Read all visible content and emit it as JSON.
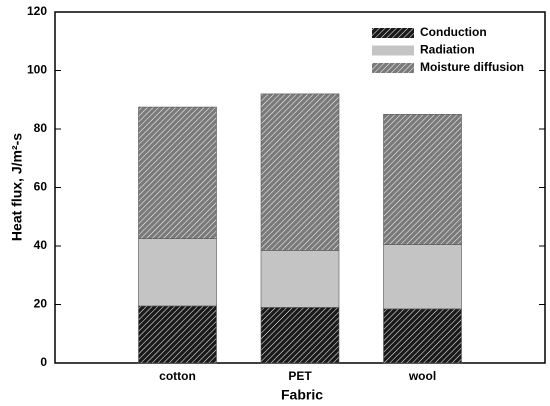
{
  "chart_data": {
    "type": "stacked_bar",
    "xlabel": "Fabric",
    "ylabel": "Heat flux, J/m²-s",
    "categories": [
      "cotton",
      "PET",
      "wool"
    ],
    "series": [
      {
        "name": "Conduction",
        "color": "#1a1a1a",
        "hatch": true,
        "values": [
          19.5,
          19,
          18.5
        ]
      },
      {
        "name": "Radiation",
        "color": "#c4c4c4",
        "hatch": false,
        "values": [
          23,
          19.5,
          22
        ]
      },
      {
        "name": "Moisture diffusion",
        "color": "#7a7a7a",
        "hatch": true,
        "values": [
          45,
          53.5,
          44.5
        ]
      }
    ],
    "ylim": [
      0,
      120
    ],
    "yticks": [
      0,
      20,
      40,
      60,
      80,
      100,
      120
    ],
    "legend": "top-right"
  }
}
